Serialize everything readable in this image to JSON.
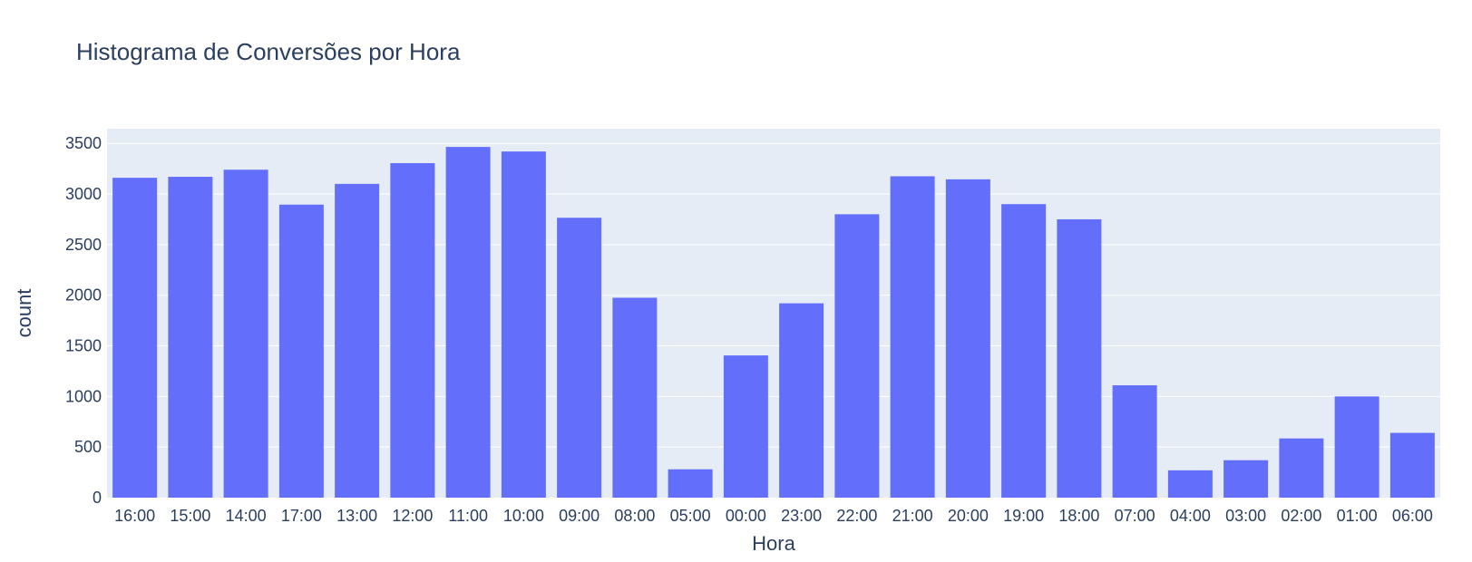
{
  "chart_data": {
    "type": "bar",
    "title": "Histograma de Conversões por Hora",
    "xlabel": "Hora",
    "ylabel": "count",
    "categories": [
      "16:00",
      "15:00",
      "14:00",
      "17:00",
      "13:00",
      "12:00",
      "11:00",
      "10:00",
      "09:00",
      "08:00",
      "05:00",
      "00:00",
      "23:00",
      "22:00",
      "21:00",
      "20:00",
      "19:00",
      "18:00",
      "07:00",
      "04:00",
      "03:00",
      "02:00",
      "01:00",
      "06:00"
    ],
    "values": [
      3160,
      3170,
      3240,
      2895,
      3100,
      3305,
      3465,
      3420,
      2765,
      1975,
      280,
      1405,
      1920,
      2800,
      3175,
      3145,
      2900,
      2750,
      1110,
      270,
      370,
      585,
      1000,
      640
    ],
    "yticks": [
      0,
      500,
      1000,
      1500,
      2000,
      2500,
      3000,
      3500
    ],
    "ylim": [
      0,
      3645
    ],
    "colors": {
      "bar": "#636efa",
      "plot_bg": "#e5ecf6",
      "grid": "#ffffff",
      "text": "#2a3f5f"
    }
  }
}
